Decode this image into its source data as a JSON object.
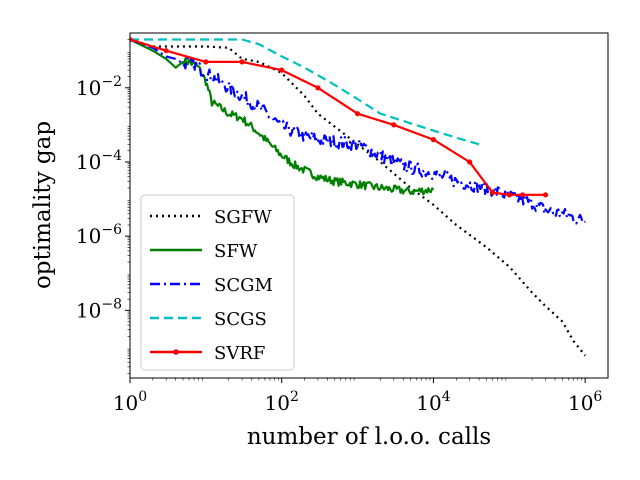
{
  "chart_data": {
    "type": "line",
    "title": "",
    "xlabel": "number of l.o.o. calls",
    "ylabel": "optimality gap",
    "xscale": "log",
    "yscale": "log",
    "xlim": [
      1,
      2000000
    ],
    "ylim": [
      1.5e-10,
      0.3
    ],
    "xticks": [
      {
        "value": 1,
        "base": "10",
        "exp": "0"
      },
      {
        "value": 100,
        "base": "10",
        "exp": "2"
      },
      {
        "value": 10000,
        "base": "10",
        "exp": "4"
      },
      {
        "value": 1000000,
        "base": "10",
        "exp": "6"
      }
    ],
    "yticks": [
      {
        "value": 1e-08,
        "base": "10",
        "exp": "−8"
      },
      {
        "value": 1e-06,
        "base": "10",
        "exp": "−6"
      },
      {
        "value": 0.0001,
        "base": "10",
        "exp": "−4"
      },
      {
        "value": 0.01,
        "base": "10",
        "exp": "−2"
      }
    ],
    "legend_position": "lower-left",
    "series": [
      {
        "name": "SGFW",
        "color": "#000000",
        "style": "dotted",
        "marker": "none",
        "x": [
          1,
          2,
          3,
          5,
          10,
          20,
          30,
          50,
          100,
          200,
          300,
          500,
          1000,
          2000,
          5000,
          10000,
          20000,
          50000,
          100000,
          200000,
          300000,
          500000,
          700000,
          1000000
        ],
        "y": [
          0.2,
          0.13,
          0.13,
          0.13,
          0.13,
          0.12,
          0.06,
          0.05,
          0.025,
          0.006,
          0.002,
          0.0009,
          0.0003,
          0.0001,
          2e-05,
          7e-06,
          2e-06,
          5e-07,
          1.5e-07,
          3e-08,
          1.3e-08,
          5e-09,
          1.5e-09,
          6e-10
        ]
      },
      {
        "name": "SFW",
        "color": "#008000",
        "style": "solid",
        "marker": "none",
        "x": [
          1,
          2,
          3,
          4,
          5,
          6,
          8,
          10,
          12,
          15,
          20,
          30,
          50,
          70,
          100,
          150,
          200,
          300,
          500,
          1000,
          2000,
          5000,
          10000
        ],
        "y": [
          0.2,
          0.1,
          0.06,
          0.035,
          0.05,
          0.05,
          0.035,
          0.015,
          0.004,
          0.003,
          0.002,
          0.0015,
          0.0006,
          0.0003,
          0.00015,
          8e-05,
          6e-05,
          4e-05,
          3e-05,
          2.5e-05,
          2e-05,
          1.6e-05,
          1.8e-05
        ]
      },
      {
        "name": "SCGM",
        "color": "#0000ff",
        "style": "dashdot",
        "marker": "none",
        "x": [
          1,
          2,
          3,
          4,
          5,
          6,
          8,
          10,
          15,
          20,
          30,
          50,
          100,
          200,
          300,
          500,
          1000,
          2000,
          3000,
          5000,
          10000,
          20000,
          50000,
          100000,
          200000,
          300000,
          500000,
          1000000
        ],
        "y": [
          0.2,
          0.12,
          0.07,
          0.06,
          0.045,
          0.05,
          0.035,
          0.025,
          0.015,
          0.01,
          0.006,
          0.003,
          0.0009,
          0.0005,
          0.0004,
          0.00035,
          0.0003,
          0.00015,
          0.0001,
          7e-05,
          5e-05,
          3e-05,
          2e-05,
          1.2e-05,
          8e-06,
          5e-06,
          4e-06,
          2.5e-06
        ]
      },
      {
        "name": "SCGS",
        "color": "#00bfbf",
        "style": "dashed",
        "marker": "none",
        "x": [
          1,
          2,
          5,
          10,
          20,
          30,
          50,
          100,
          200,
          500,
          1000,
          2000,
          5000,
          10000,
          20000,
          40000
        ],
        "y": [
          0.2,
          0.2,
          0.2,
          0.2,
          0.2,
          0.2,
          0.15,
          0.07,
          0.035,
          0.012,
          0.005,
          0.002,
          0.0011,
          0.0007,
          0.00045,
          0.0003
        ]
      },
      {
        "name": "SVRF",
        "color": "#ff0000",
        "style": "solid",
        "marker": "dot",
        "x": [
          1,
          3,
          10,
          30,
          100,
          300,
          1000,
          3000,
          10000,
          30000,
          60000,
          100000,
          150000,
          300000
        ],
        "y": [
          0.2,
          0.1,
          0.05,
          0.05,
          0.03,
          0.01,
          0.002,
          0.001,
          0.0004,
          0.0001,
          1.5e-05,
          1.3e-05,
          1.3e-05,
          1.3e-05
        ]
      }
    ]
  }
}
